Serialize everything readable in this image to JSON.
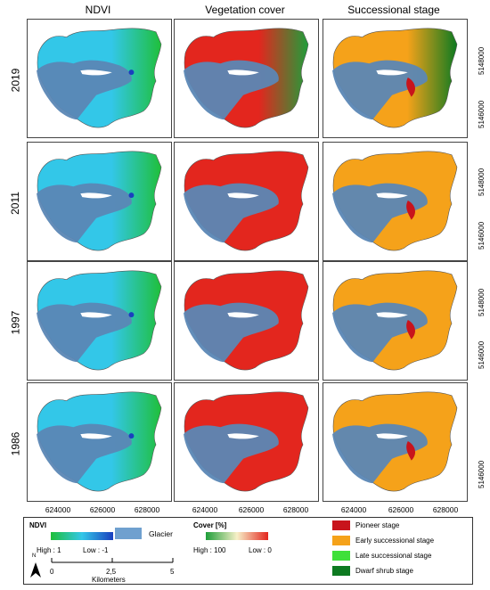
{
  "columns": [
    "NDVI",
    "Vegetation cover",
    "Successional stage"
  ],
  "years": [
    "2019",
    "2011",
    "1997",
    "1986"
  ],
  "x_ticks": [
    "624000",
    "626000",
    "628000"
  ],
  "y_ticks": [
    "5148000",
    "5146000"
  ],
  "legend": {
    "ndvi_title": "NDVI",
    "ndvi_high": "High : 1",
    "ndvi_low": "Low : -1",
    "glacier": "Glacier",
    "cover_title": "Cover [%]",
    "cover_high": "High : 100",
    "cover_low": "Low : 0",
    "stages": [
      "Pioneer stage",
      "Early successional stage",
      "Late successional stage",
      "Dwarf shrub stage"
    ]
  },
  "scalebar": {
    "ticks": [
      "0",
      "2,5",
      "5"
    ],
    "unit": "Kilometers",
    "north": "N"
  },
  "colors": {
    "glacier": "#5b87b5",
    "ndvi_low": "#1a3fbf",
    "ndvi_mid": "#33c7e8",
    "ndvi_high": "#1fbf3a",
    "cover_high": "#e3261e",
    "cover_low": "#1f9e3a",
    "pioneer": "#c8141c",
    "early": "#f5a21a",
    "late": "#3fe03a",
    "dwarf": "#0d7a21"
  }
}
